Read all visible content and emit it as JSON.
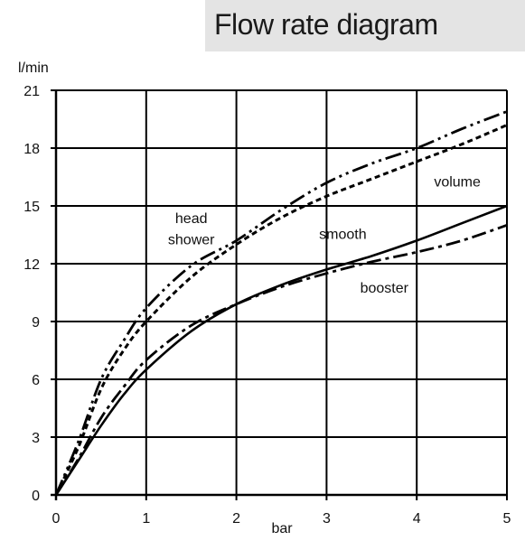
{
  "chart_data": {
    "type": "line",
    "title": "Flow rate diagram",
    "xlabel": "bar",
    "ylabel": "l/min",
    "xlim": [
      0,
      5
    ],
    "ylim": [
      0,
      21
    ],
    "xticks": [
      0,
      1,
      2,
      3,
      4,
      5
    ],
    "yticks": [
      0,
      3,
      6,
      9,
      12,
      15,
      18,
      21
    ],
    "grid": true,
    "legend": "none",
    "series": [
      {
        "name": "head shower",
        "dash": "short-dash",
        "x": [
          0,
          0.25,
          0.5,
          0.75,
          1,
          1.5,
          2,
          2.5,
          3,
          3.5,
          4,
          4.5,
          5
        ],
        "y": [
          0,
          2.5,
          5.5,
          7.5,
          9,
          11.3,
          13,
          14.4,
          15.5,
          16.4,
          17.3,
          18.2,
          19.2
        ]
      },
      {
        "name": "volume",
        "dash": "dash-dot-dot",
        "x": [
          0,
          0.25,
          0.5,
          0.75,
          1,
          1.5,
          2,
          2.5,
          3,
          3.5,
          4,
          4.5,
          5
        ],
        "y": [
          0,
          2.8,
          6,
          8,
          9.7,
          11.9,
          13.2,
          14.8,
          16.2,
          17.2,
          18,
          19,
          19.9
        ]
      },
      {
        "name": "smooth",
        "dash": "solid",
        "x": [
          0,
          0.25,
          0.5,
          0.75,
          1,
          1.5,
          2,
          2.5,
          3,
          3.5,
          4,
          4.5,
          5
        ],
        "y": [
          0,
          1.8,
          3.6,
          5.2,
          6.5,
          8.5,
          9.9,
          10.9,
          11.7,
          12.4,
          13.2,
          14.1,
          15
        ]
      },
      {
        "name": "booster",
        "dash": "dash-dot",
        "x": [
          0,
          0.25,
          0.5,
          0.75,
          1,
          1.5,
          2,
          2.5,
          3,
          3.5,
          4,
          4.5,
          5
        ],
        "y": [
          0,
          1.9,
          4.0,
          5.6,
          7.0,
          8.8,
          9.9,
          10.8,
          11.5,
          12.1,
          12.6,
          13.2,
          14
        ]
      }
    ],
    "annotations": [
      {
        "text": "head",
        "x": 1.5,
        "y": 14.1
      },
      {
        "text": "shower",
        "x": 1.5,
        "y": 13.0
      },
      {
        "text": "volume",
        "x": 4.45,
        "y": 16.0
      },
      {
        "text": "smooth",
        "x": 3.18,
        "y": 13.3
      },
      {
        "text": "booster",
        "x": 3.64,
        "y": 10.5
      }
    ]
  }
}
